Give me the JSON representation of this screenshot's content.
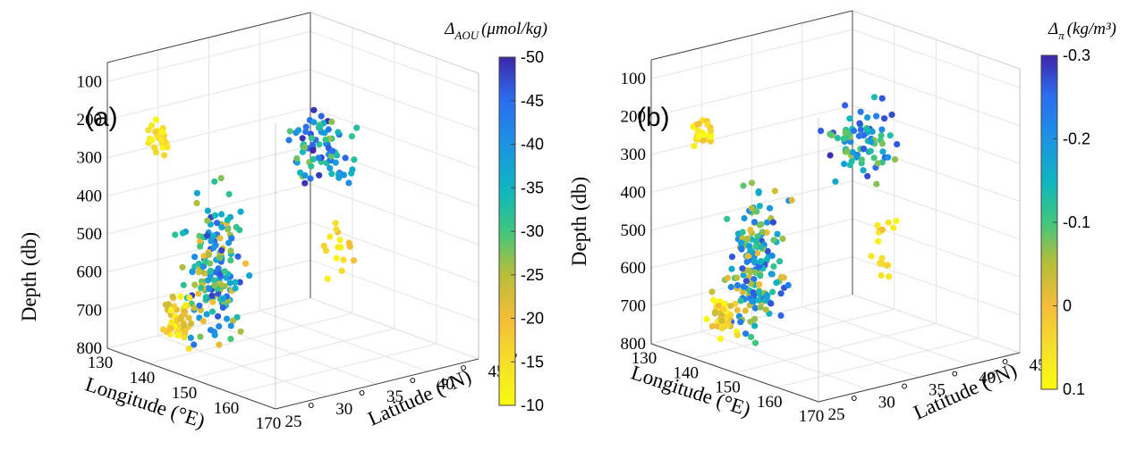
{
  "figure": {
    "description_ticks": "3D scatter plots of profiling float observations"
  },
  "chart_data": [
    {
      "type": "scatter",
      "panel_label": "(a)",
      "xlabel": "Longitude (°E)",
      "ylabel": "Latitude (°N)",
      "zlabel": "Depth (db)",
      "x_ticks": [
        "130",
        "140",
        "150",
        "160",
        "170"
      ],
      "y_ticks": [
        "25",
        "30",
        "35",
        "40",
        "45"
      ],
      "z_ticks": [
        "100",
        "200",
        "300",
        "400",
        "500",
        "600",
        "700",
        "800"
      ],
      "xlim": [
        130,
        170
      ],
      "ylim": [
        25,
        45
      ],
      "zlim": [
        50,
        800
      ],
      "colorbar": {
        "title": "Δ_AOU (μmol/kg)",
        "title_main": "Δ",
        "title_sub": "AOU",
        "title_unit": "(μmol/kg)",
        "ticks": [
          "-50",
          "-45",
          "-40",
          "-35",
          "-30",
          "-25",
          "-20",
          "-15",
          "-10"
        ],
        "range": [
          -50,
          -10
        ]
      },
      "seed": 11
    },
    {
      "type": "scatter",
      "panel_label": "(b)",
      "xlabel": "Longitude (°E)",
      "ylabel": "Latitude (°N)",
      "zlabel": "Depth (db)",
      "x_ticks": [
        "130",
        "140",
        "150",
        "160",
        "170"
      ],
      "y_ticks": [
        "25",
        "30",
        "35",
        "40",
        "45"
      ],
      "z_ticks": [
        "100",
        "200",
        "300",
        "400",
        "500",
        "600",
        "700",
        "800"
      ],
      "xlim": [
        130,
        170
      ],
      "ylim": [
        25,
        45
      ],
      "zlim": [
        50,
        800
      ],
      "colorbar": {
        "title": "Δ_π (kg/m³)",
        "title_main": "Δ",
        "title_sub": "π",
        "title_unit": "(kg/m³)",
        "ticks": [
          "-0.3",
          "-0.2",
          "-0.1",
          "0",
          "0.1"
        ],
        "range": [
          -0.3,
          0.1
        ]
      },
      "seed": 29
    }
  ]
}
